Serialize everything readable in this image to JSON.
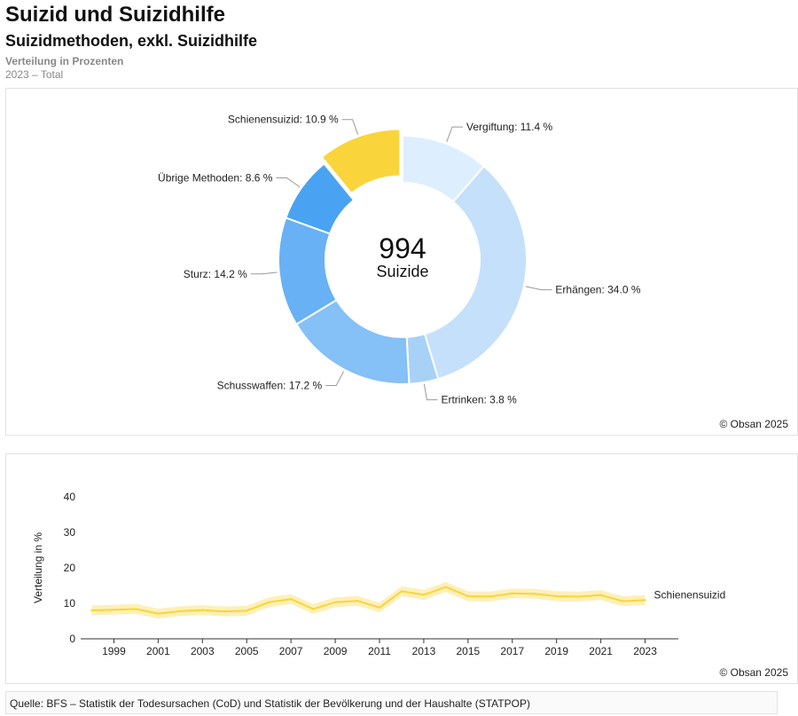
{
  "header": {
    "title": "Suizid und Suizidhilfe",
    "subtitle": "Suizidmethoden, exkl. Suizidhilfe",
    "measure": "Verteilung in Prozenten",
    "period": "2023 – Total"
  },
  "credit": "© Obsan 2025",
  "source": "Quelle: BFS – Statistik der Todesursachen (CoD) und Statistik der Bevölkerung und der Haushalte (STATPOP)",
  "colors": {
    "highlight": "#fad43b",
    "band": "#fdeeb1",
    "axis": "#333333"
  },
  "chart_data": [
    {
      "type": "pie",
      "variant": "donut",
      "center_value": "994",
      "center_label": "Suizide",
      "slices": [
        {
          "label": "Vergiftung: 11.4 %",
          "name": "Vergiftung",
          "value": 11.4,
          "color": "#ddeefe"
        },
        {
          "label": "Erhängen: 34.0 %",
          "name": "Erhängen",
          "value": 34.0,
          "color": "#c5e0fb"
        },
        {
          "label": "Ertrinken: 3.8 %",
          "name": "Ertrinken",
          "value": 3.8,
          "color": "#a8d1f8"
        },
        {
          "label": "Schusswaffen: 17.2 %",
          "name": "Schusswaffen",
          "value": 17.2,
          "color": "#85c0f6"
        },
        {
          "label": "Sturz: 14.2 %",
          "name": "Sturz",
          "value": 14.2,
          "color": "#67b1f4"
        },
        {
          "label": "Übrige Methoden: 8.6 %",
          "name": "Übrige Methoden",
          "value": 8.6,
          "color": "#49a3f2"
        },
        {
          "label": "Schienensuizid: 10.9 %",
          "name": "Schienensuizid",
          "value": 10.9,
          "color": "#fad43b",
          "highlight": true
        }
      ]
    },
    {
      "type": "line",
      "ylabel": "Verteilung in %",
      "ylim": [
        0,
        40
      ],
      "yticks": [
        0,
        10,
        20,
        30,
        40
      ],
      "xticks": [
        1999,
        2001,
        2003,
        2005,
        2007,
        2009,
        2011,
        2013,
        2015,
        2017,
        2019,
        2021,
        2023
      ],
      "series": [
        {
          "name": "Schienensuizid",
          "x": [
            1998,
            1999,
            2000,
            2001,
            2002,
            2003,
            2004,
            2005,
            2006,
            2007,
            2008,
            2009,
            2010,
            2011,
            2012,
            2013,
            2014,
            2015,
            2016,
            2017,
            2018,
            2019,
            2020,
            2021,
            2022,
            2023
          ],
          "values": [
            8.0,
            8.2,
            8.4,
            7.1,
            7.8,
            8.1,
            7.7,
            7.9,
            10.3,
            11.2,
            8.4,
            10.3,
            10.7,
            8.8,
            13.4,
            12.4,
            14.6,
            12.0,
            11.9,
            12.8,
            12.7,
            12.0,
            11.9,
            12.3,
            10.6,
            10.9
          ],
          "band_halfwidth": 1.4
        }
      ]
    }
  ]
}
